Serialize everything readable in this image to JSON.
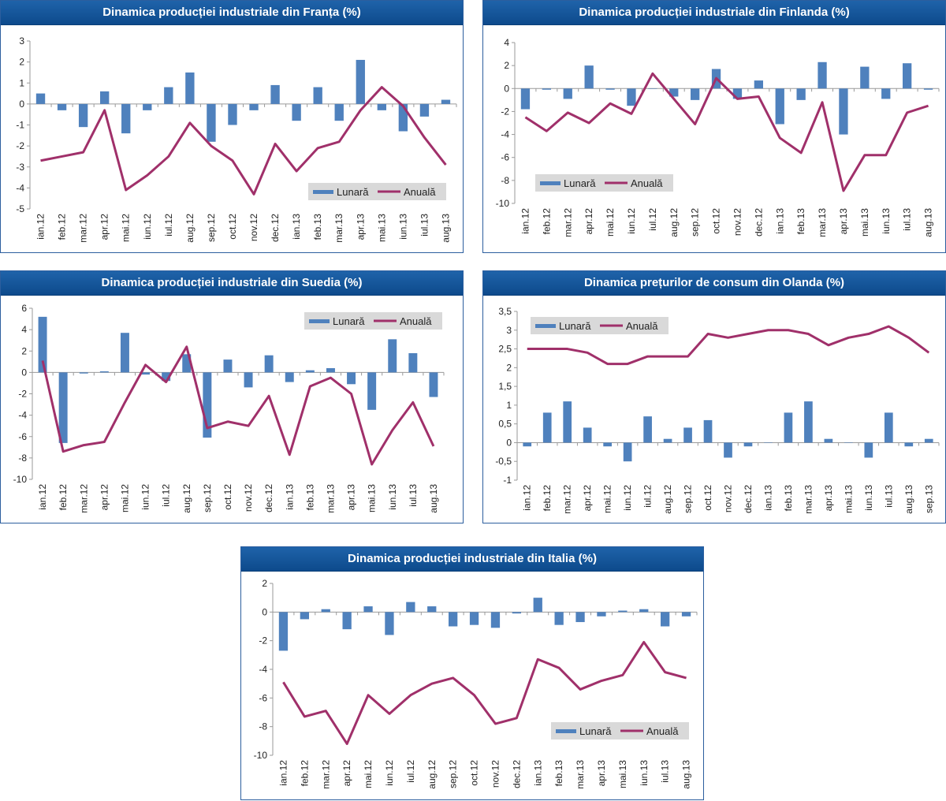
{
  "colors": {
    "bar": "#4f81bd",
    "line": "#a0306a",
    "axis": "#9a9a9a",
    "title_bg": "#1a5da4"
  },
  "legend": {
    "monthly": "Lunară",
    "annual": "Anuală"
  },
  "chart_data": [
    {
      "type": "bar+line",
      "title": "Dinamica producției industriale din Franța (%)",
      "categories": [
        "ian.12",
        "feb.12",
        "mar.12",
        "apr.12",
        "mai.12",
        "iun.12",
        "iul.12",
        "aug.12",
        "sep.12",
        "oct.12",
        "nov.12",
        "dec.12",
        "ian.13",
        "feb.13",
        "mar.13",
        "apr.13",
        "mai.13",
        "iun.13",
        "iul.13",
        "aug.13"
      ],
      "ylim": [
        -5,
        3
      ],
      "ytick_step": 1,
      "decimal_comma": false,
      "legend_position": "bottom-right",
      "series": [
        {
          "name": "Lunară",
          "kind": "bar",
          "values": [
            0.5,
            -0.3,
            -1.1,
            0.6,
            -1.4,
            -0.3,
            0.8,
            1.5,
            -1.8,
            -1.0,
            -0.3,
            0.9,
            -0.8,
            0.8,
            -0.8,
            2.1,
            -0.3,
            -1.3,
            -0.6,
            0.2
          ]
        },
        {
          "name": "Anuală",
          "kind": "line",
          "values": [
            -2.7,
            -2.5,
            -2.3,
            -0.3,
            -4.1,
            -3.4,
            -2.5,
            -0.9,
            -2.0,
            -2.7,
            -4.3,
            -1.9,
            -3.2,
            -2.1,
            -1.8,
            -0.3,
            0.8,
            -0.1,
            -1.6,
            -2.9
          ]
        }
      ]
    },
    {
      "type": "bar+line",
      "title": "Dinamica producției industriale din Finlanda (%)",
      "categories": [
        "ian.12",
        "feb.12",
        "mar.12",
        "apr.12",
        "mai.12",
        "iun.12",
        "iul.12",
        "aug.12",
        "sep.12",
        "oct.12",
        "nov.12",
        "dec.12",
        "ian.13",
        "feb.13",
        "mar.13",
        "apr.13",
        "mai.13",
        "iun.13",
        "iul.13",
        "aug.13"
      ],
      "ylim": [
        -10,
        4
      ],
      "ytick_step": 2,
      "decimal_comma": false,
      "legend_position": "bottom-left",
      "series": [
        {
          "name": "Lunară",
          "kind": "bar",
          "values": [
            -1.8,
            -0.1,
            -0.9,
            2.0,
            -0.1,
            -1.5,
            0.0,
            -0.7,
            -1.0,
            1.7,
            -0.9,
            0.7,
            -3.1,
            -1.0,
            2.3,
            -4.0,
            1.9,
            -0.9,
            2.2,
            -0.1
          ]
        },
        {
          "name": "Anuală",
          "kind": "line",
          "values": [
            -2.5,
            -3.7,
            -2.1,
            -3.0,
            -1.3,
            -2.2,
            1.3,
            -0.9,
            -3.1,
            0.9,
            -0.9,
            -0.7,
            -4.3,
            -5.6,
            -1.2,
            -8.9,
            -5.8,
            -5.8,
            -2.1,
            -1.5
          ]
        }
      ]
    },
    {
      "type": "bar+line",
      "title": "Dinamica producției industriale din Suedia (%)",
      "categories": [
        "ian.12",
        "feb.12",
        "mar.12",
        "apr.12",
        "mai.12",
        "iun.12",
        "iul.12",
        "aug.12",
        "sep.12",
        "oct.12",
        "nov.12",
        "dec.12",
        "ian.13",
        "feb.13",
        "mar.13",
        "apr.13",
        "mai.13",
        "iun.13",
        "iul.13",
        "aug.13"
      ],
      "ylim": [
        -10,
        6
      ],
      "ytick_step": 2,
      "decimal_comma": false,
      "legend_position": "top-right",
      "series": [
        {
          "name": "Lunară",
          "kind": "bar",
          "values": [
            5.2,
            -6.6,
            -0.1,
            0.1,
            3.7,
            -0.2,
            -0.8,
            1.7,
            -6.1,
            1.2,
            -1.4,
            1.6,
            -0.9,
            0.2,
            0.4,
            -1.1,
            -3.5,
            3.1,
            1.8,
            -2.3
          ]
        },
        {
          "name": "Anuală",
          "kind": "line",
          "values": [
            1.1,
            -7.4,
            -6.8,
            -6.5,
            -2.8,
            0.7,
            -0.9,
            2.4,
            -5.2,
            -4.6,
            -5.0,
            -2.2,
            -7.7,
            -1.3,
            -0.5,
            -2.0,
            -8.6,
            -5.4,
            -2.8,
            -6.9
          ]
        }
      ]
    },
    {
      "type": "bar+line",
      "title": "Dinamica prețurilor de consum din Olanda (%)",
      "categories": [
        "ian.12",
        "feb.12",
        "mar.12",
        "apr.12",
        "mai.12",
        "iun.12",
        "iul.12",
        "aug.12",
        "sep.12",
        "oct.12",
        "nov.12",
        "dec.12",
        "ian.13",
        "feb.13",
        "mar.13",
        "apr.13",
        "mai.13",
        "iun.13",
        "iul.13",
        "aug.13",
        "sep.13"
      ],
      "ylim": [
        -1,
        3.5
      ],
      "ytick_step": 0.5,
      "decimal_comma": true,
      "legend_position": "top-left",
      "series": [
        {
          "name": "Lunară",
          "kind": "bar",
          "values": [
            -0.1,
            0.8,
            1.1,
            0.4,
            -0.1,
            -0.5,
            0.7,
            0.1,
            0.4,
            0.6,
            -0.4,
            -0.1,
            0.0,
            0.8,
            1.1,
            0.1,
            0.0,
            -0.4,
            0.8,
            -0.1,
            0.1
          ]
        },
        {
          "name": "Anuală",
          "kind": "line",
          "values": [
            2.5,
            2.5,
            2.5,
            2.4,
            2.1,
            2.1,
            2.3,
            2.3,
            2.3,
            2.9,
            2.8,
            2.9,
            3.0,
            3.0,
            2.9,
            2.6,
            2.8,
            2.9,
            3.1,
            2.8,
            2.4
          ]
        }
      ]
    },
    {
      "type": "bar+line",
      "title": "Dinamica producției industriale din Italia (%)",
      "categories": [
        "ian.12",
        "feb.12",
        "mar.12",
        "apr.12",
        "mai.12",
        "iun.12",
        "iul.12",
        "aug.12",
        "sep.12",
        "oct.12",
        "nov.12",
        "dec.12",
        "ian.13",
        "feb.13",
        "mar.13",
        "apr.13",
        "mai.13",
        "iun.13",
        "iul.13",
        "aug.13"
      ],
      "ylim": [
        -10,
        2
      ],
      "ytick_step": 2,
      "decimal_comma": false,
      "legend_position": "bottom-right",
      "series": [
        {
          "name": "Lunară",
          "kind": "bar",
          "values": [
            -2.7,
            -0.5,
            0.2,
            -1.2,
            0.4,
            -1.6,
            0.7,
            0.4,
            -1.0,
            -0.9,
            -1.1,
            -0.1,
            1.0,
            -0.9,
            -0.7,
            -0.3,
            0.1,
            0.2,
            -1.0,
            -0.3
          ]
        },
        {
          "name": "Anuală",
          "kind": "line",
          "values": [
            -4.9,
            -7.3,
            -6.9,
            -9.2,
            -5.8,
            -7.1,
            -5.8,
            -5.0,
            -4.6,
            -5.8,
            -7.8,
            -7.4,
            -3.3,
            -3.9,
            -5.4,
            -4.8,
            -4.4,
            -2.1,
            -4.2,
            -4.6
          ]
        }
      ]
    }
  ]
}
